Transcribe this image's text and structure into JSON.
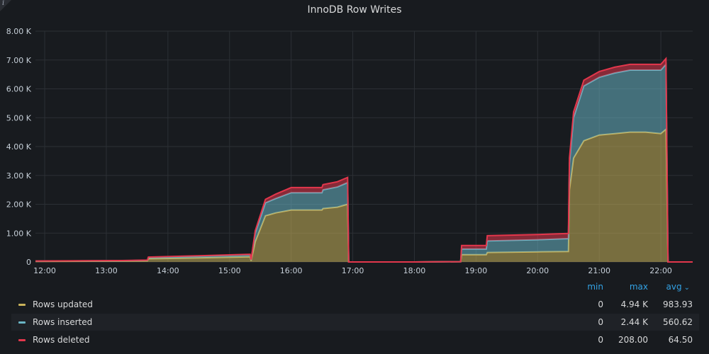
{
  "panel": {
    "title": "InnoDB Row Writes",
    "info_icon": "i"
  },
  "legend": {
    "headers": {
      "min": "min",
      "max": "max",
      "avg": "avg"
    },
    "rows": [
      {
        "name": "Rows updated",
        "color": "#c9b25a",
        "min": "0",
        "max": "4.94 K",
        "avg": "983.93"
      },
      {
        "name": "Rows inserted",
        "color": "#6ab5c5",
        "min": "0",
        "max": "2.44 K",
        "avg": "560.62"
      },
      {
        "name": "Rows deleted",
        "color": "#e3374c",
        "min": "0",
        "max": "208.00",
        "avg": "64.50"
      }
    ]
  },
  "chart_data": {
    "type": "area",
    "stacked": true,
    "title": "InnoDB Row Writes",
    "x_ticks": [
      "12:00",
      "13:00",
      "14:00",
      "15:00",
      "16:00",
      "17:00",
      "18:00",
      "19:00",
      "20:00",
      "21:00",
      "22:00"
    ],
    "xlim": [
      "11:51",
      "22:31"
    ],
    "y_ticks": [
      "0",
      "1.00 K",
      "2.00 K",
      "3.00 K",
      "4.00 K",
      "5.00 K",
      "6.00 K",
      "7.00 K",
      "8.00 K"
    ],
    "ylim": [
      0,
      8000
    ],
    "grid": true,
    "legend_position": "bottom",
    "x": [
      "11:51",
      "13:15",
      "13:40",
      "13:41",
      "14:30",
      "15:20",
      "15:21",
      "15:25",
      "15:35",
      "15:45",
      "16:00",
      "16:15",
      "16:30",
      "16:31",
      "16:45",
      "16:55",
      "16:56",
      "17:05",
      "18:00",
      "18:45",
      "18:46",
      "19:10",
      "19:11",
      "20:00",
      "20:30",
      "20:31",
      "20:35",
      "20:45",
      "21:00",
      "21:15",
      "21:30",
      "21:45",
      "22:00",
      "22:05",
      "22:07",
      "22:31"
    ],
    "series": [
      {
        "name": "Rows updated",
        "color": "#c9b25a",
        "values": [
          20,
          30,
          40,
          110,
          140,
          180,
          40,
          700,
          1600,
          1700,
          1800,
          1800,
          1800,
          1850,
          1900,
          2000,
          0,
          0,
          0,
          10,
          250,
          250,
          330,
          350,
          360,
          2500,
          3600,
          4200,
          4400,
          4450,
          4500,
          4500,
          4450,
          4600,
          0,
          0
        ]
      },
      {
        "name": "Rows inserted",
        "color": "#6ab5c5",
        "values": [
          10,
          15,
          20,
          50,
          60,
          70,
          30,
          300,
          450,
          500,
          600,
          600,
          600,
          650,
          700,
          750,
          0,
          0,
          0,
          0,
          200,
          200,
          400,
          420,
          450,
          900,
          1400,
          1900,
          2000,
          2100,
          2150,
          2150,
          2200,
          2250,
          0,
          0
        ]
      },
      {
        "name": "Rows deleted",
        "color": "#e3374c",
        "values": [
          5,
          5,
          5,
          10,
          15,
          15,
          10,
          80,
          120,
          150,
          180,
          180,
          180,
          180,
          180,
          180,
          0,
          0,
          0,
          0,
          120,
          120,
          180,
          180,
          180,
          200,
          200,
          200,
          200,
          200,
          200,
          200,
          200,
          200,
          0,
          0
        ]
      }
    ]
  }
}
